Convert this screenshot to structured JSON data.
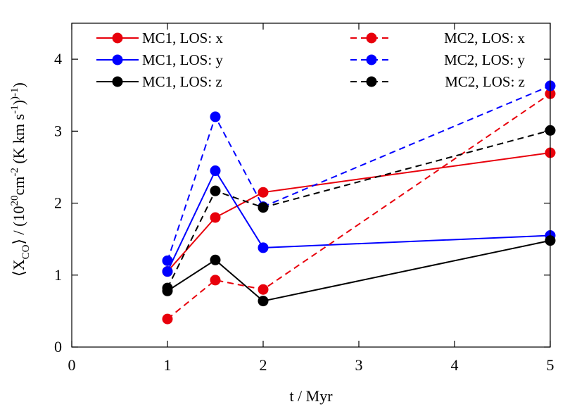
{
  "chart_data": {
    "type": "line",
    "xlabel": "t / Myr",
    "ylabel": {
      "lt": "⟨X",
      "sub": "CO",
      "rt": "⟩ / (10",
      "sup1": "20",
      "cm": "cm",
      "sup2": "-2",
      "kkm": " (K km s",
      "sup3": "-1",
      "close": ")",
      "sup4": ")-1",
      "end": ")"
    },
    "xlim": [
      0,
      5
    ],
    "ylim": [
      0,
      4.5
    ],
    "xticks": [
      "0",
      "1",
      "2",
      "3",
      "4",
      "5"
    ],
    "yticks": [
      "0",
      "1",
      "2",
      "3",
      "4"
    ],
    "xtick_values": [
      0,
      1,
      2,
      3,
      4,
      5
    ],
    "ytick_values": [
      0,
      1,
      2,
      3,
      4
    ],
    "grid": false,
    "legend_placement": "top",
    "series": [
      {
        "name": "MC1, LOS: x",
        "color": "#e8000b",
        "dash": false,
        "x": [
          1,
          1.5,
          2,
          5
        ],
        "y": [
          1.05,
          1.8,
          2.15,
          2.7
        ]
      },
      {
        "name": "MC1, LOS: y",
        "color": "#0000ff",
        "dash": false,
        "x": [
          1,
          1.5,
          2,
          5
        ],
        "y": [
          1.05,
          2.45,
          1.38,
          1.55
        ]
      },
      {
        "name": "MC1, LOS: z",
        "color": "#000000",
        "dash": false,
        "x": [
          1,
          1.5,
          2,
          5
        ],
        "y": [
          0.78,
          1.21,
          0.64,
          1.48
        ]
      },
      {
        "name": "MC2, LOS: x",
        "color": "#e8000b",
        "dash": true,
        "x": [
          1,
          1.5,
          2,
          5
        ],
        "y": [
          0.39,
          0.93,
          0.8,
          3.52
        ]
      },
      {
        "name": "MC2, LOS: y",
        "color": "#0000ff",
        "dash": true,
        "x": [
          1,
          1.5,
          2,
          5
        ],
        "y": [
          1.2,
          3.2,
          1.95,
          3.63
        ]
      },
      {
        "name": "MC2, LOS: z",
        "color": "#000000",
        "dash": true,
        "x": [
          1,
          1.5,
          2,
          5
        ],
        "y": [
          0.82,
          2.17,
          1.94,
          3.01
        ]
      }
    ]
  }
}
